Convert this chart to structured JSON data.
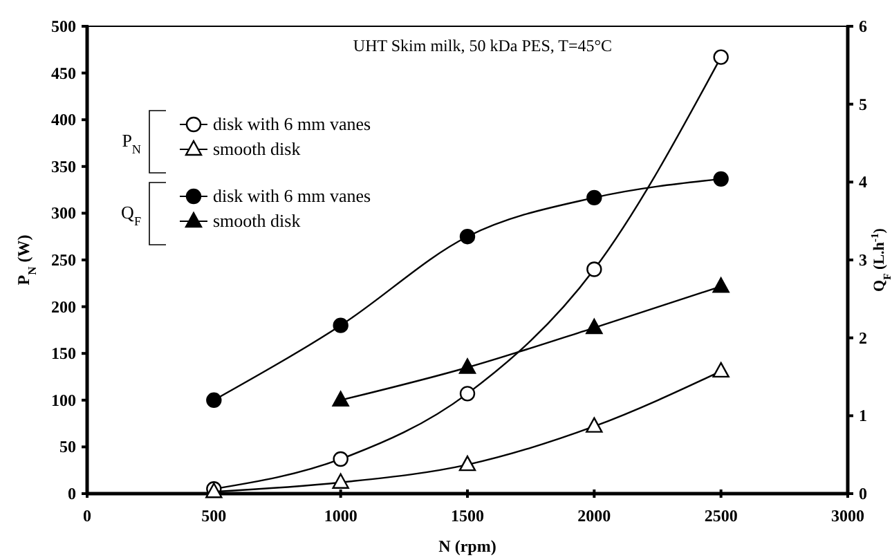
{
  "chart_data": {
    "type": "line",
    "title": "UHT Skim milk, 50 kDa PES, T=45°C",
    "xlabel": "N (rpm)",
    "ylabel": "P$_{N}$ (W)",
    "y2label": "Q$_{F}$ (L.h$^{-1}$)",
    "x": [
      500,
      1000,
      1500,
      2000,
      2500
    ],
    "series": [
      {
        "name": "disk with 6 mm vanes",
        "color": "#000000",
        "marker": "circle",
        "values": [
          5,
          37,
          107,
          240,
          467
        ]
      },
      {
        "name": "smooth disk",
        "color": "#000000",
        "marker": "triangle",
        "values": [
          2,
          12,
          31,
          72,
          131
        ]
      },
      {
        "name": "disk with 6 mm vanes",
        "color": "#000000",
        "marker": "circle",
        "axis": "y2",
        "values": [
          1.2,
          2.16,
          3.3,
          3.8,
          4.04
        ]
      },
      {
        "name": "smooth disk",
        "color": "#000000",
        "marker": "triangle",
        "axis": "y2",
        "values": [
          null,
          1.2,
          1.62,
          2.13,
          2.66
        ]
      }
    ],
    "annotations": [
      "P$_{N}$",
      "Q$_{F}$"
    ],
    "xlim": [
      0,
      3000
    ],
    "xticks": [
      0,
      500,
      1000,
      1500,
      2000,
      2500,
      3000
    ],
    "ylim": [
      0,
      500
    ],
    "yticks": [
      0,
      50,
      100,
      150,
      200,
      250,
      300,
      350,
      400,
      450,
      500
    ],
    "y2lim": [
      0,
      6
    ],
    "y2ticks": [
      0,
      1,
      2,
      3,
      4,
      5,
      6
    ],
    "legend": "top left",
    "grid": false,
    "line_style": "solid"
  }
}
